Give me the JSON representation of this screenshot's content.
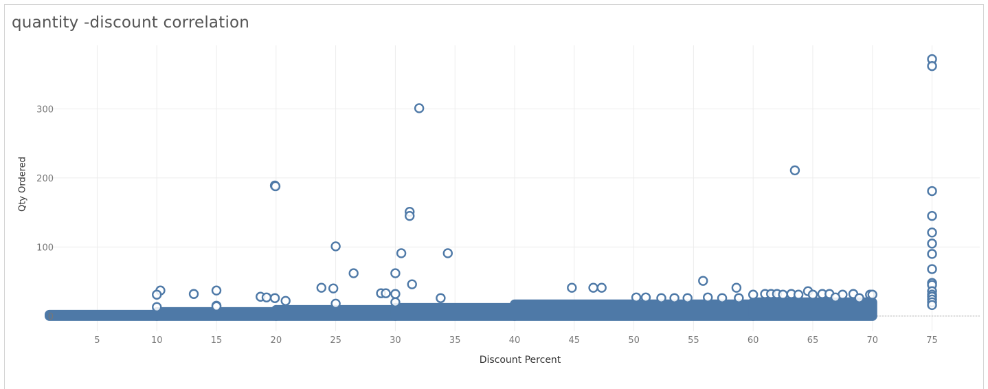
{
  "chart_data": {
    "type": "scatter",
    "title": "quantity -discount correlation",
    "xlabel": "Discount Percent",
    "ylabel": "Qty Ordered",
    "xlim": [
      1,
      79
    ],
    "ylim": [
      -22,
      392
    ],
    "xticks": [
      5,
      10,
      15,
      20,
      25,
      30,
      35,
      40,
      45,
      50,
      55,
      60,
      65,
      70,
      75
    ],
    "yticks": [
      0,
      100,
      200,
      300
    ],
    "grid": true,
    "marker": "hollow-circle",
    "color": "#4e79a7",
    "dense_band": [
      {
        "x_from": 1,
        "x_to": 10,
        "y_from": 0,
        "y_to": 2
      },
      {
        "x_from": 10,
        "x_to": 20,
        "y_from": 0,
        "y_to": 6
      },
      {
        "x_from": 20,
        "x_to": 30,
        "y_from": 0,
        "y_to": 9
      },
      {
        "x_from": 30,
        "x_to": 40,
        "y_from": 0,
        "y_to": 12
      },
      {
        "x_from": 40,
        "x_to": 60,
        "y_from": 0,
        "y_to": 17
      },
      {
        "x_from": 60,
        "x_to": 70,
        "y_from": 0,
        "y_to": 20
      }
    ],
    "points": [
      {
        "x": 75,
        "y": 372
      },
      {
        "x": 75,
        "y": 362
      },
      {
        "x": 75,
        "y": 181
      },
      {
        "x": 75,
        "y": 145
      },
      {
        "x": 75,
        "y": 121
      },
      {
        "x": 75,
        "y": 105
      },
      {
        "x": 75,
        "y": 90
      },
      {
        "x": 75,
        "y": 68
      },
      {
        "x": 75,
        "y": 48
      },
      {
        "x": 75,
        "y": 45
      },
      {
        "x": 75,
        "y": 36
      },
      {
        "x": 75,
        "y": 31
      },
      {
        "x": 75,
        "y": 28
      },
      {
        "x": 75,
        "y": 24
      },
      {
        "x": 75,
        "y": 20
      },
      {
        "x": 75,
        "y": 16
      },
      {
        "x": 32,
        "y": 301
      },
      {
        "x": 63.5,
        "y": 211
      },
      {
        "x": 19.9,
        "y": 189
      },
      {
        "x": 19.95,
        "y": 188
      },
      {
        "x": 31.2,
        "y": 151
      },
      {
        "x": 31.2,
        "y": 145
      },
      {
        "x": 25,
        "y": 101
      },
      {
        "x": 30.5,
        "y": 91
      },
      {
        "x": 34.4,
        "y": 91
      },
      {
        "x": 26.5,
        "y": 62
      },
      {
        "x": 30,
        "y": 62
      },
      {
        "x": 55.8,
        "y": 51
      },
      {
        "x": 31.4,
        "y": 46
      },
      {
        "x": 10.3,
        "y": 37
      },
      {
        "x": 15,
        "y": 37
      },
      {
        "x": 10,
        "y": 31
      },
      {
        "x": 13.1,
        "y": 32
      },
      {
        "x": 23.8,
        "y": 41
      },
      {
        "x": 24.8,
        "y": 40
      },
      {
        "x": 44.8,
        "y": 41
      },
      {
        "x": 46.6,
        "y": 41
      },
      {
        "x": 47.3,
        "y": 41
      },
      {
        "x": 58.6,
        "y": 41
      },
      {
        "x": 64.6,
        "y": 36
      },
      {
        "x": 18.7,
        "y": 28
      },
      {
        "x": 19.2,
        "y": 27
      },
      {
        "x": 19.9,
        "y": 26
      },
      {
        "x": 20.8,
        "y": 22
      },
      {
        "x": 28.8,
        "y": 33
      },
      {
        "x": 29.2,
        "y": 33
      },
      {
        "x": 30,
        "y": 32
      },
      {
        "x": 33.8,
        "y": 26
      },
      {
        "x": 10,
        "y": 13
      },
      {
        "x": 15,
        "y": 15
      },
      {
        "x": 15,
        "y": 14
      },
      {
        "x": 25,
        "y": 18
      },
      {
        "x": 30,
        "y": 20
      },
      {
        "x": 60,
        "y": 31
      },
      {
        "x": 61,
        "y": 32
      },
      {
        "x": 61.5,
        "y": 32
      },
      {
        "x": 62,
        "y": 32
      },
      {
        "x": 62.5,
        "y": 31
      },
      {
        "x": 63.2,
        "y": 32
      },
      {
        "x": 63.8,
        "y": 31
      },
      {
        "x": 65.8,
        "y": 32
      },
      {
        "x": 66.4,
        "y": 32
      },
      {
        "x": 67.5,
        "y": 31
      },
      {
        "x": 68.4,
        "y": 32
      },
      {
        "x": 69.8,
        "y": 31
      },
      {
        "x": 70,
        "y": 31
      },
      {
        "x": 50.2,
        "y": 27
      },
      {
        "x": 51,
        "y": 27
      },
      {
        "x": 52.3,
        "y": 26
      },
      {
        "x": 53.4,
        "y": 26
      },
      {
        "x": 54.5,
        "y": 26
      },
      {
        "x": 56.2,
        "y": 27
      },
      {
        "x": 57.4,
        "y": 26
      },
      {
        "x": 58.8,
        "y": 26
      },
      {
        "x": 66.9,
        "y": 27
      },
      {
        "x": 65,
        "y": 31
      },
      {
        "x": 68.9,
        "y": 26
      }
    ]
  }
}
